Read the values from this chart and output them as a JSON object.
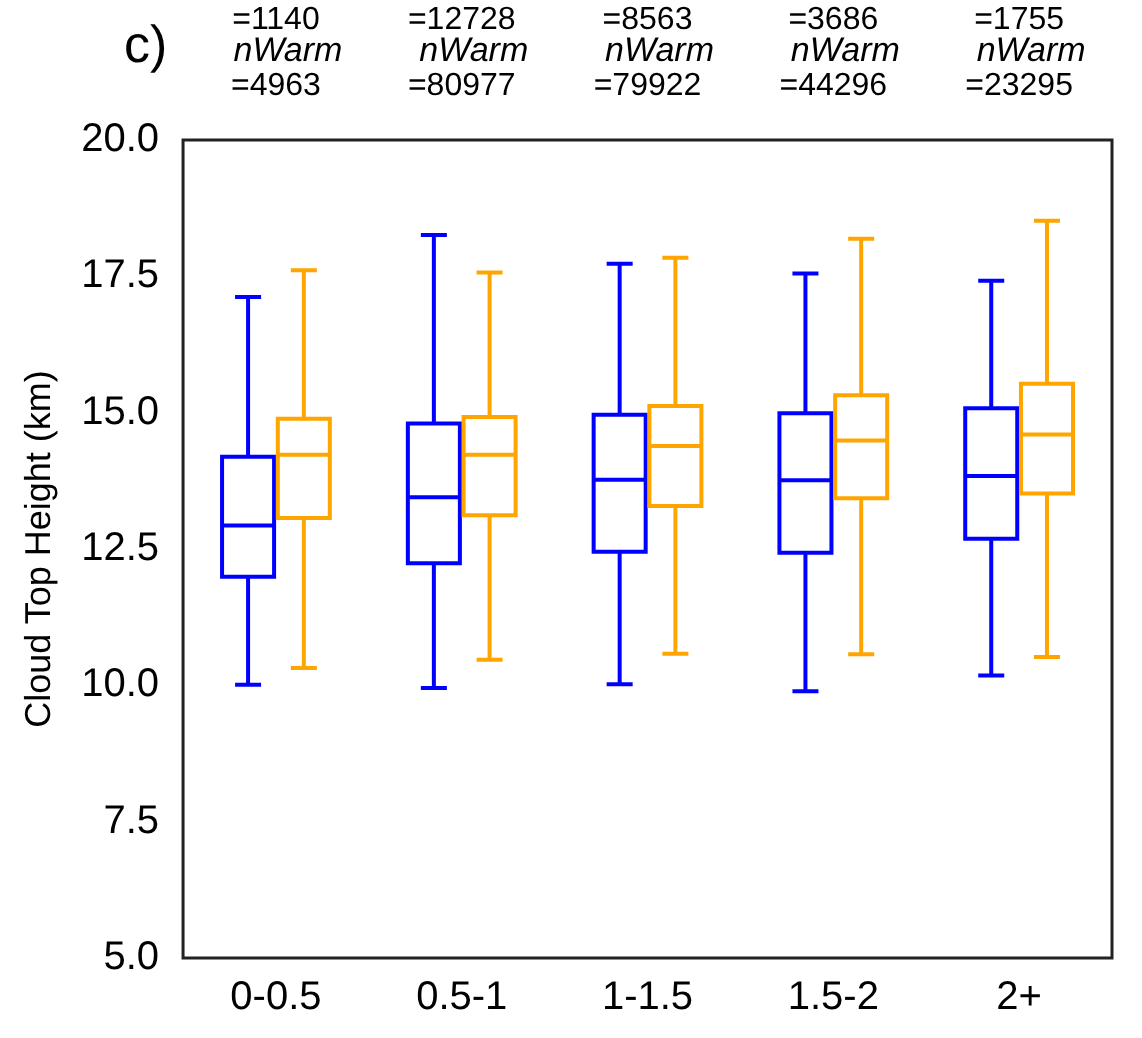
{
  "chart_data": {
    "type": "box",
    "ylabel": "Cloud Top Height (km)",
    "annotations": [
      "c)",
      "=1140",
      "nWarm",
      "=4963",
      "=12728",
      "nWarm",
      "=80977",
      "=8563",
      "nWarm",
      "=79922",
      "=3686",
      "nWarm",
      "=44296",
      "=1755",
      "nWarm",
      "=23295"
    ],
    "categories": [
      "0-0.5",
      "0.5-1",
      "1-1.5",
      "1.5-2",
      "2+"
    ],
    "ylim": [
      5,
      20
    ],
    "yticks": [
      {
        "value": 5,
        "label": "5.0"
      },
      {
        "value": 7.5,
        "label": "7.5"
      },
      {
        "value": 10,
        "label": "10.0"
      },
      {
        "value": 12.5,
        "label": "12.5"
      },
      {
        "value": 15,
        "label": "15.0"
      },
      {
        "value": 17.5,
        "label": "17.5"
      },
      {
        "value": 20,
        "label": "20.0"
      }
    ],
    "grid": false,
    "legend": false,
    "series": [
      {
        "color": "#0000ff",
        "boxes": [
          {
            "low": 10.01,
            "q1": 11.99,
            "median": 12.93,
            "q3": 14.19,
            "high": 17.12
          },
          {
            "low": 9.95,
            "q1": 12.24,
            "median": 13.45,
            "q3": 14.8,
            "high": 18.26
          },
          {
            "low": 10.02,
            "q1": 12.45,
            "median": 13.77,
            "q3": 14.96,
            "high": 17.73
          },
          {
            "low": 9.89,
            "q1": 12.43,
            "median": 13.76,
            "q3": 14.99,
            "high": 17.55
          },
          {
            "low": 10.18,
            "q1": 12.69,
            "median": 13.84,
            "q3": 15.08,
            "high": 17.42
          }
        ]
      },
      {
        "color": "#ffa500",
        "boxes": [
          {
            "low": 10.32,
            "q1": 13.07,
            "median": 14.23,
            "q3": 14.89,
            "high": 17.61
          },
          {
            "low": 10.47,
            "q1": 13.12,
            "median": 14.23,
            "q3": 14.92,
            "high": 17.57
          },
          {
            "low": 10.58,
            "q1": 13.29,
            "median": 14.39,
            "q3": 15.12,
            "high": 17.84
          },
          {
            "low": 10.57,
            "q1": 13.43,
            "median": 14.49,
            "q3": 15.32,
            "high": 18.19
          },
          {
            "low": 10.52,
            "q1": 13.52,
            "median": 14.6,
            "q3": 15.53,
            "high": 18.52
          }
        ]
      }
    ]
  }
}
